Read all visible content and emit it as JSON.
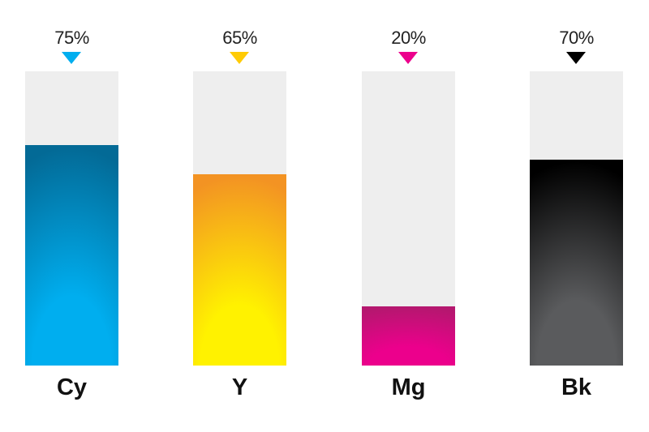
{
  "chart_data": {
    "type": "bar",
    "categories": [
      "Cy",
      "Y",
      "Mg",
      "Bk"
    ],
    "values": [
      75,
      65,
      20,
      70
    ],
    "value_labels": [
      "75%",
      "65%",
      "20%",
      "70%"
    ],
    "ylim": [
      0,
      100
    ],
    "grid": false,
    "colors": {
      "Cy": {
        "marker": "#00aeef",
        "top": "#036a96",
        "bottom": "#00aeef"
      },
      "Y": {
        "marker": "#ffcb05",
        "top": "#f39323",
        "bottom": "#fff200"
      },
      "Mg": {
        "marker": "#ec008c",
        "top": "#b5176f",
        "bottom": "#ec008c"
      },
      "Bk": {
        "marker": "#000000",
        "top": "#000000",
        "bottom": "#5a5b5d"
      }
    },
    "track_color": "#eeeeee"
  }
}
